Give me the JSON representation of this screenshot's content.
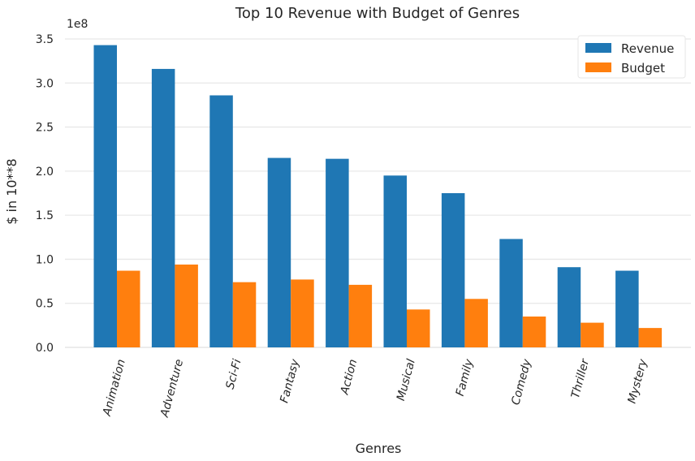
{
  "chart_data": {
    "type": "bar",
    "title": "Top 10 Revenue with Budget of Genres",
    "xlabel": "Genres",
    "ylabel": "$ in 10**8",
    "y_offset_label": "1e8",
    "categories": [
      "Animation",
      "Adventure",
      "Sci-Fi",
      "Fantasy",
      "Action",
      "Musical",
      "Family",
      "Comedy",
      "Thriller",
      "Mystery"
    ],
    "series": [
      {
        "name": "Revenue",
        "color": "#1f77b4",
        "values": [
          3.43,
          3.16,
          2.86,
          2.15,
          2.14,
          1.95,
          1.75,
          1.23,
          0.91,
          0.87
        ]
      },
      {
        "name": "Budget",
        "color": "#ff7f0e",
        "values": [
          0.87,
          0.94,
          0.74,
          0.77,
          0.71,
          0.43,
          0.55,
          0.35,
          0.28,
          0.22
        ]
      }
    ],
    "ylim": [
      0,
      3.5
    ],
    "yticks": [
      "0.0",
      "0.5",
      "1.0",
      "1.5",
      "2.0",
      "2.5",
      "3.0",
      "3.5"
    ],
    "grid": true,
    "legend_position": "top-right"
  }
}
